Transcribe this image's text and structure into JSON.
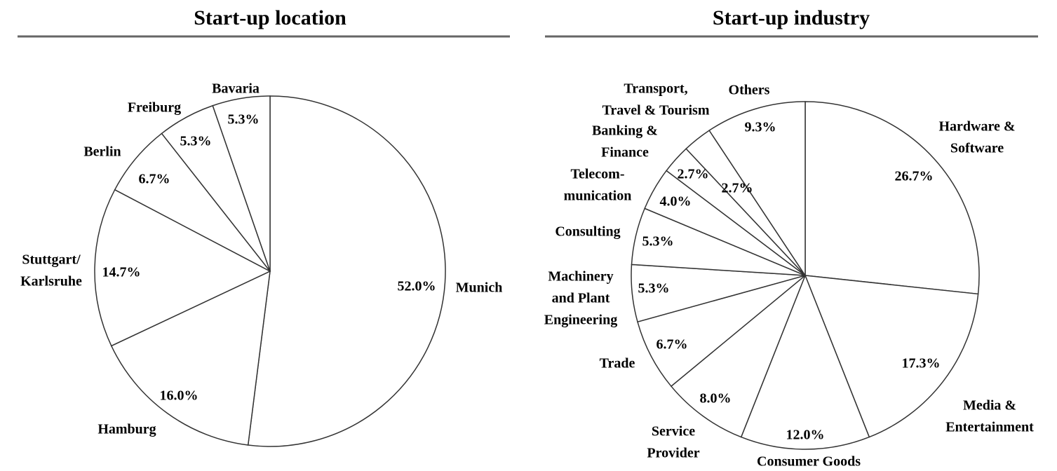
{
  "chart_data": [
    {
      "type": "pie",
      "title": "Start-up location",
      "categories": [
        [
          "Munich"
        ],
        [
          "Hamburg"
        ],
        [
          "Stuttgart/",
          "Karlsruhe"
        ],
        [
          "Berlin"
        ],
        [
          "Freiburg"
        ],
        [
          "Bavaria"
        ]
      ],
      "values": [
        52.0,
        16.0,
        14.7,
        6.7,
        5.3,
        5.3
      ],
      "value_labels": [
        "52.0%",
        "16.0%",
        "14.7%",
        "6.7%",
        "5.3%",
        "5.3%"
      ],
      "color": "#ffffff"
    },
    {
      "type": "pie",
      "title": "Start-up industry",
      "categories": [
        [
          "Hardware &",
          "Software"
        ],
        [
          "Media &",
          "Entertainment"
        ],
        [
          "Consumer Goods"
        ],
        [
          "Service",
          "Provider"
        ],
        [
          "Trade"
        ],
        [
          "Machinery",
          "and Plant",
          "Engineering"
        ],
        [
          "Consulting"
        ],
        [
          "Telecom-",
          "munication"
        ],
        [
          "Banking &",
          "Finance"
        ],
        [
          "Transport,",
          "Travel & Tourism"
        ],
        [
          "Others"
        ]
      ],
      "values": [
        26.7,
        17.3,
        12.0,
        8.0,
        6.7,
        5.3,
        5.3,
        4.0,
        2.7,
        2.7,
        9.3
      ],
      "value_labels": [
        "26.7%",
        "17.3%",
        "12.0%",
        "8.0%",
        "6.7%",
        "5.3%",
        "5.3%",
        "4.0%",
        "2.7%",
        "2.7%",
        "9.3%"
      ],
      "color": "#ffffff"
    }
  ]
}
